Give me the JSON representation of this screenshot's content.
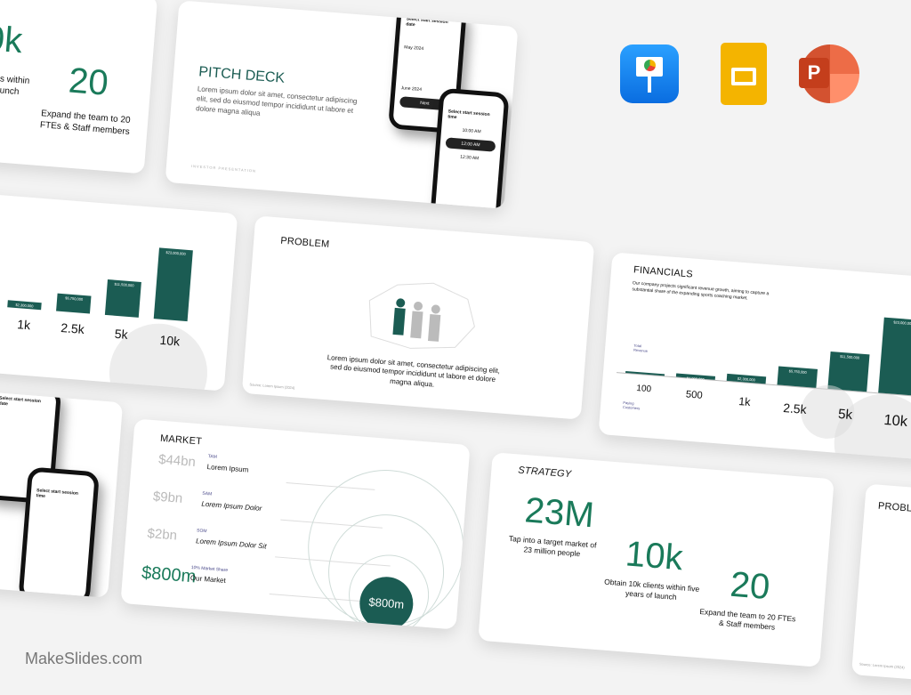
{
  "brand": {
    "watermark": "MakeSlides.com",
    "accent": "#1b5c53",
    "number_green": "#1a7a5a"
  },
  "app_icons": [
    {
      "name": "keynote-icon",
      "color": "#1a8cf0"
    },
    {
      "name": "google-slides-icon",
      "color": "#f4b400"
    },
    {
      "name": "powerpoint-icon",
      "color": "#d04423"
    }
  ],
  "strategy": {
    "title": "STRATEGY",
    "stats": [
      {
        "value": "23M",
        "caption": "Tap into a target market of 23 million people"
      },
      {
        "value": "10k",
        "caption": "Obtain 10k clients within five years of launch"
      },
      {
        "value": "20",
        "caption": "Expand the team to 20 FTEs & Staff members"
      }
    ],
    "partial_caption": "Obtain 10k clients within five years of launch"
  },
  "pitch": {
    "title": "PITCH DECK",
    "body": "Lorem ipsum dolor sit amet, consectetur adipiscing elit, sed do eiusmod tempor incididunt ut labore et dolore magna aliqua",
    "footer": "INVESTOR PRESENTATION",
    "phone1": {
      "heading": "Select start session date",
      "month1": "May 2024",
      "month2": "June 2024",
      "button": "Next"
    },
    "phone2": {
      "heading": "Select start session time",
      "slots": [
        "10:00 AM",
        "12:00 AM",
        "12:30 AM"
      ]
    }
  },
  "financials": {
    "title": "FINANCIALS",
    "body": "Our company projects significant revenue growth, aiming to capture a substantial share of the expanding sports coaching market.",
    "revenue_label": "Total Revenue",
    "customers_label": "Paying Customers",
    "customers": [
      "100",
      "500",
      "1k",
      "2.5k",
      "5k",
      "10k"
    ],
    "revenue": [
      "$100,000",
      "$1,000,000",
      "$2,300,000",
      "$5,750,000",
      "$11,500,000",
      "$23,000,000"
    ],
    "revenue_values": [
      100000,
      1000000,
      2300000,
      5750000,
      11500000,
      23000000
    ]
  },
  "problem": {
    "title": "PROBLEM",
    "body": "Lorem ipsum dolor sit amet, consectetur adipiscing elit, sed do eiusmod tempor incididunt ut labore et dolore magna aliqua.",
    "source": "Source: Lorem Ipsum (2024)"
  },
  "market": {
    "title": "MARKET",
    "rows": [
      {
        "value": "$44bn",
        "tag": "TAM",
        "label": "Lorem Ipsum"
      },
      {
        "value": "$9bn",
        "tag": "SAM",
        "label": "Lorem Ipsum Dolor"
      },
      {
        "value": "$2bn",
        "tag": "SOM",
        "label": "Lorem Ipsum Dolor Sit"
      },
      {
        "value": "$800m",
        "tag": "10% Market Share",
        "label": "Our Market"
      }
    ],
    "bubble": "$800m"
  }
}
